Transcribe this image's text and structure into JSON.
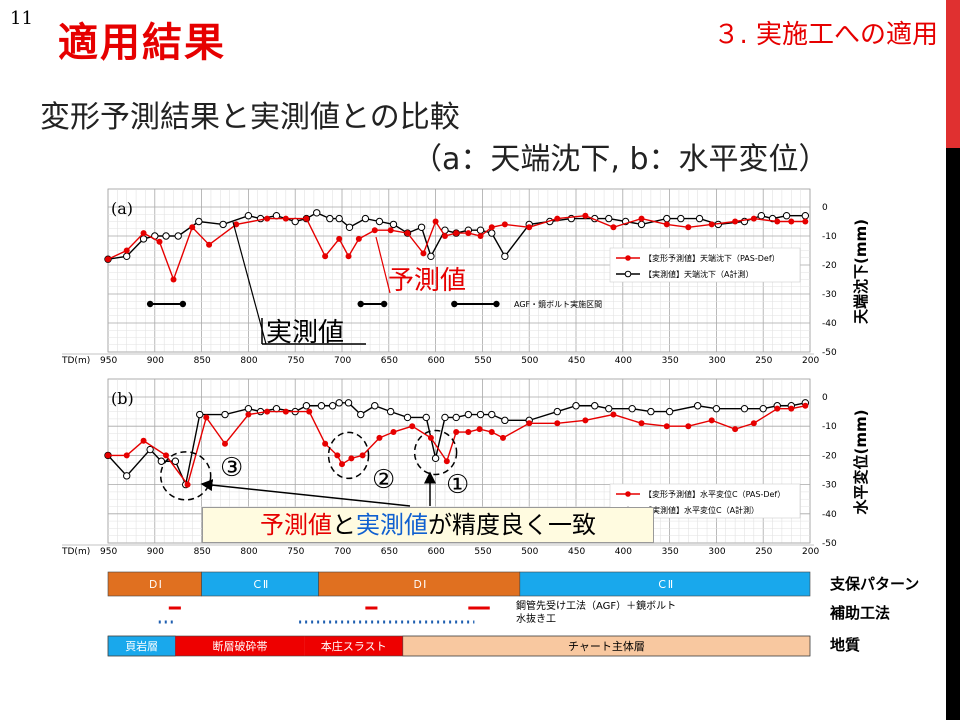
{
  "slide_number": "11",
  "title": "適用結果",
  "section": "３. 実施工への適用",
  "subtitle_line1": "変形予測結果と実測値との比較",
  "subtitle_line2": "（a：天端沈下, b：水平変位）",
  "callouts": {
    "predicted": "予測値",
    "measured": "実測値",
    "agreement_part1": "予測値",
    "agreement_part2": "と",
    "agreement_part3": "実測値",
    "agreement_part4": "が精度良く一致",
    "marker1": "①",
    "marker2": "②",
    "marker3": "③"
  },
  "colors": {
    "predicted": "#e60000",
    "measured": "#000000",
    "support_DI": "#e07020",
    "support_CII": "#19a8ec",
    "aux_red": "#e60000",
    "aux_blue": "#1f5fb0",
    "geo_shale": "#19a8ec",
    "geo_fault": "#ee0000",
    "geo_chert": "#f8c8a0"
  },
  "chart_data": [
    {
      "type": "line",
      "panel_label": "(a)",
      "xlabel": "TD(m)",
      "ylabel": "天端沈下(mm)",
      "xlim": [
        950,
        200
      ],
      "ylim": [
        -50,
        0
      ],
      "x_ticks": [
        950,
        900,
        850,
        800,
        750,
        700,
        650,
        600,
        550,
        500,
        450,
        400,
        350,
        300,
        250,
        200
      ],
      "y_ticks": [
        0,
        -10,
        -20,
        -30,
        -40,
        -50
      ],
      "grid": true,
      "legend_position": "right",
      "series": [
        {
          "name": "【変形予測値】天端沈下（PAS-Def）",
          "color": "#e60000",
          "x": [
            950,
            930,
            912,
            895,
            880,
            860,
            842,
            813,
            780,
            760,
            738,
            718,
            703,
            693,
            682,
            665,
            648,
            630,
            613,
            600,
            590,
            578,
            565,
            552,
            540,
            526,
            500,
            470,
            440,
            410,
            380,
            353,
            330,
            305,
            280,
            260,
            235,
            220,
            205
          ],
          "y": [
            -18,
            -15,
            -9,
            -12,
            -25,
            -7,
            -13,
            -6,
            -4,
            -4,
            -4,
            -17,
            -11,
            -17,
            -11,
            -8,
            -8,
            -9,
            -16,
            -5,
            -10,
            -9,
            -9,
            -10,
            -7,
            -6,
            -7,
            -4,
            -3,
            -7,
            -4,
            -6,
            -7,
            -6,
            -5,
            -4,
            -5,
            -5,
            -5
          ]
        },
        {
          "name": "【実測値】天端沈下（A計測）",
          "color": "#000000",
          "x": [
            950,
            930,
            912,
            900,
            888,
            875,
            853,
            827,
            800,
            787,
            770,
            750,
            738,
            727,
            713,
            703,
            692,
            675,
            660,
            645,
            630,
            615,
            605,
            590,
            578,
            565,
            552,
            540,
            526,
            500,
            478,
            455,
            430,
            415,
            397,
            380,
            353,
            338,
            318,
            298,
            270,
            252,
            240,
            225,
            205
          ],
          "y": [
            -18,
            -17,
            -11,
            -10,
            -10,
            -10,
            -5,
            -6,
            -3,
            -4,
            -3,
            -5,
            -4,
            -2,
            -4,
            -4,
            -7,
            -4,
            -5,
            -6,
            -9,
            -7,
            -17,
            -8,
            -9,
            -8,
            -8,
            -9,
            -17,
            -6,
            -5,
            -4,
            -4,
            -4,
            -5,
            -6,
            -4,
            -4,
            -4,
            -6,
            -5,
            -3,
            -4,
            -3,
            -3
          ]
        }
      ],
      "annotation": "AGF・鏡ボルト実施区間",
      "ranges": [
        [
          905,
          870
        ],
        [
          680,
          655
        ],
        [
          580,
          535
        ]
      ]
    },
    {
      "type": "line",
      "panel_label": "(b)",
      "xlabel": "TD(m)",
      "ylabel": "水平変位(mm)",
      "xlim": [
        950,
        200
      ],
      "ylim": [
        -50,
        0
      ],
      "x_ticks": [
        950,
        900,
        850,
        800,
        750,
        700,
        650,
        600,
        550,
        500,
        450,
        400,
        350,
        300,
        250,
        200
      ],
      "y_ticks": [
        0,
        -10,
        -20,
        -30,
        -40,
        -50
      ],
      "grid": true,
      "legend_position": "bottom-right",
      "series": [
        {
          "name": "【変形予測値】水平変位C（PAS-Def）",
          "color": "#e60000",
          "x": [
            950,
            930,
            912,
            888,
            865,
            845,
            825,
            800,
            780,
            760,
            735,
            718,
            705,
            700,
            690,
            678,
            660,
            645,
            625,
            605,
            588,
            578,
            565,
            553,
            540,
            528,
            500,
            470,
            440,
            410,
            380,
            353,
            330,
            305,
            280,
            260,
            235,
            220,
            205
          ],
          "y": [
            -20,
            -20,
            -15,
            -20,
            -30,
            -7,
            -16,
            -6,
            -5,
            -5,
            -5,
            -16,
            -20,
            -23,
            -21,
            -20,
            -14,
            -12,
            -10,
            -14,
            -22,
            -12,
            -12,
            -11,
            -12,
            -14,
            -9,
            -9,
            -8,
            -6,
            -9,
            -10,
            -10,
            -8,
            -11,
            -9,
            -4,
            -4,
            -3
          ]
        },
        {
          "name": "【実測値】水平変位C（A計測）",
          "color": "#000000",
          "x": [
            950,
            930,
            905,
            893,
            878,
            867,
            852,
            825,
            800,
            787,
            770,
            750,
            738,
            722,
            710,
            703,
            693,
            680,
            665,
            648,
            630,
            610,
            600,
            590,
            578,
            565,
            552,
            540,
            526,
            500,
            470,
            450,
            430,
            415,
            390,
            370,
            350,
            320,
            300,
            270,
            250,
            235,
            220,
            205
          ],
          "y": [
            -20,
            -27,
            -18,
            -22,
            -22,
            -30,
            -6,
            -6,
            -4,
            -5,
            -4,
            -5,
            -3,
            -3,
            -3,
            -2,
            -2,
            -6,
            -3,
            -5,
            -7,
            -7,
            -21,
            -7,
            -7,
            -6,
            -6,
            -6,
            -8,
            -8,
            -5,
            -3,
            -3,
            -4,
            -4,
            -5,
            -5,
            -3,
            -4,
            -4,
            -4,
            -3,
            -3,
            -2
          ]
        }
      ],
      "markers": [
        {
          "label": "①",
          "x": 600,
          "y": -21
        },
        {
          "label": "②",
          "x": 690,
          "y": -20
        },
        {
          "label": "③",
          "x": 867,
          "y": -27
        }
      ]
    }
  ],
  "bands": {
    "support_pattern": {
      "label": "支保パターン",
      "segments": [
        {
          "label": "ＤⅠ",
          "from": 950,
          "to": 850,
          "kind": "DI"
        },
        {
          "label": "ＣⅡ",
          "from": 850,
          "to": 725,
          "kind": "CII"
        },
        {
          "label": "ＤⅠ",
          "from": 725,
          "to": 510,
          "kind": "DI"
        },
        {
          "label": "ＣⅡ",
          "from": 510,
          "to": 200,
          "kind": "CII"
        }
      ]
    },
    "auxiliary": {
      "label": "補助工法",
      "legend_red": "鋼管先受け工法（AGF）＋鏡ボルト",
      "legend_blue": "水抜き工",
      "red_ranges": [
        [
          900,
          870
        ],
        [
          690,
          660
        ],
        [
          580,
          540
        ]
      ],
      "blue_ranges": [
        [
          915,
          890
        ],
        [
          780,
          550
        ]
      ]
    },
    "geology": {
      "label": "地質",
      "segments": [
        {
          "label": "頁岩層",
          "from": 950,
          "to": 878,
          "kind": "shale"
        },
        {
          "label": "断層破砕帯",
          "from": 878,
          "to": 740,
          "kind": "fault"
        },
        {
          "label": "本庄スラスト",
          "from": 740,
          "to": 635,
          "kind": "fault"
        },
        {
          "label": "チャート主体層",
          "from": 635,
          "to": 200,
          "kind": "chert"
        }
      ]
    }
  }
}
